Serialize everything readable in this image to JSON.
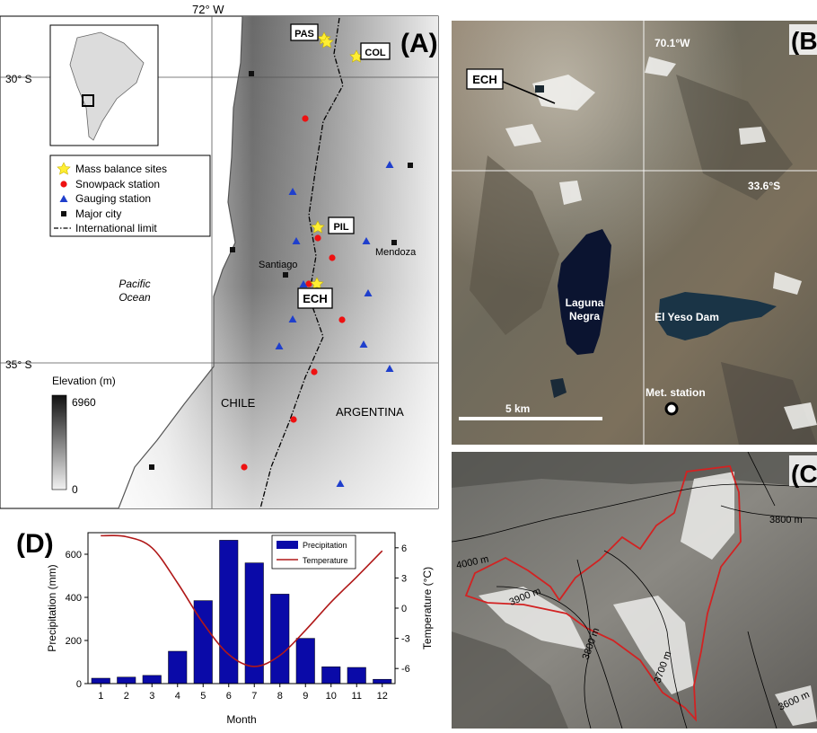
{
  "panel_a": {
    "letter": "(A)",
    "coords": {
      "lon": "72°  W",
      "lat30": "30° S",
      "lat35": "35° S"
    },
    "site_labels": {
      "pas": "PAS",
      "col": "COL",
      "pil": "PIL",
      "ech": "ECH"
    },
    "place_labels": {
      "santiago": "Santiago",
      "mendoza": "Mendoza",
      "ocean_line1": "Pacific",
      "ocean_line2": "Ocean",
      "chile": "CHILE",
      "argentina": "ARGENTINA"
    },
    "legend": [
      {
        "symbol": "star",
        "color": "#ffee33",
        "label": "Mass balance sites"
      },
      {
        "symbol": "circle",
        "color": "#ee1111",
        "label": "Snowpack station"
      },
      {
        "symbol": "triangle",
        "color": "#1f3fcc",
        "label": "Gauging station"
      },
      {
        "symbol": "square",
        "color": "#111111",
        "label": "Major city"
      },
      {
        "symbol": "dashdot",
        "color": "#000000",
        "label": "International limit"
      }
    ],
    "elevation": {
      "title": "Elevation (m)",
      "max": "6960",
      "min": "0"
    }
  },
  "panel_b": {
    "letter": "(B",
    "labels": {
      "ech": "ECH",
      "lon": "70.1°W",
      "lat": "33.6°S",
      "lake1_line1": "Laguna",
      "lake1_line2": "Negra",
      "lake2": "El Yeso Dam",
      "scale": "5 km",
      "station": "Met. station"
    }
  },
  "panel_c": {
    "letter": "(C",
    "contours": [
      "3800 m",
      "4000 m",
      "3900 m",
      "3800 m",
      "3700 m",
      "3600 m"
    ]
  },
  "panel_d": {
    "letter": "(D)",
    "chart_data": {
      "type": "bar",
      "x": [
        1,
        2,
        3,
        4,
        5,
        6,
        7,
        8,
        9,
        10,
        11,
        12
      ],
      "series": [
        {
          "name": "Precipitation",
          "color": "#0a0aa8",
          "axis": "left",
          "values": [
            25,
            30,
            38,
            150,
            385,
            665,
            560,
            415,
            210,
            78,
            75,
            20
          ]
        },
        {
          "name": "Temperature",
          "color": "#b01818",
          "axis": "right",
          "values": [
            7.2,
            7.1,
            6.0,
            2.5,
            -1.5,
            -4.6,
            -5.8,
            -4.7,
            -2.2,
            0.6,
            3.1,
            5.7
          ]
        }
      ],
      "xlabel": "Month",
      "ylabel": "Precipitation (mm)",
      "ylabel_right": "Temperature (°C)",
      "ylim": [
        0,
        700
      ],
      "ylim_right": [
        -7.5,
        7.5
      ],
      "yticks": [
        "0",
        "200",
        "400",
        "600"
      ],
      "yticks_right": [
        "-6",
        "-3",
        "0",
        "3",
        "6"
      ],
      "legend_position": "top-right"
    }
  }
}
